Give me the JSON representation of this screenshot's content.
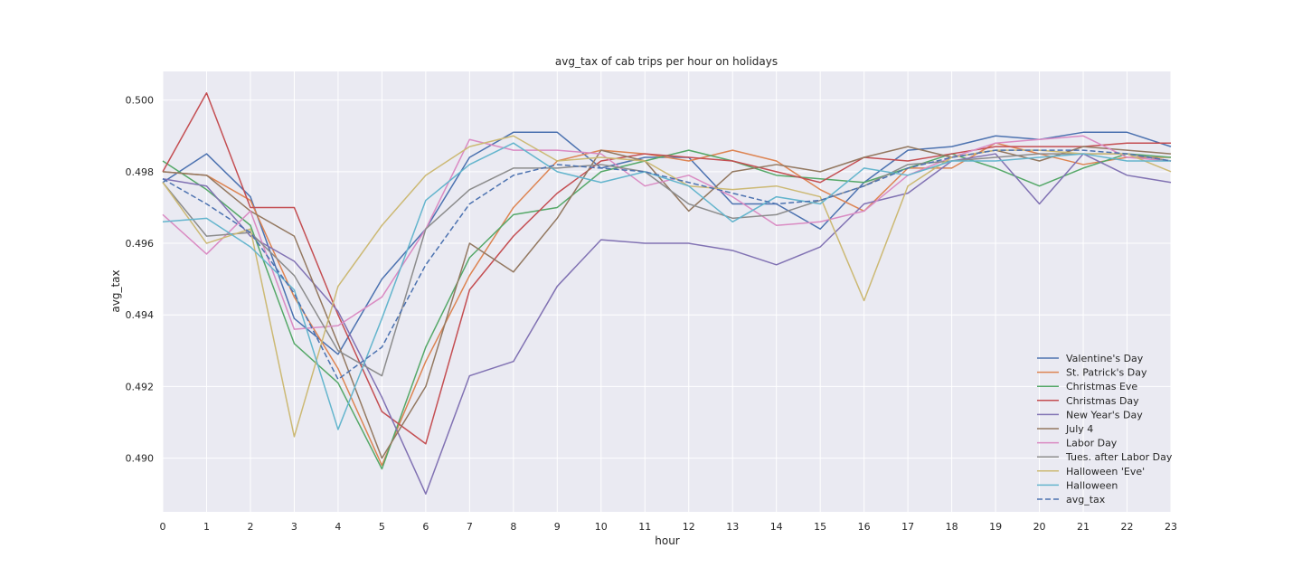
{
  "chart_data": {
    "type": "line",
    "title": "avg_tax of cab trips per hour on holidays",
    "xlabel": "hour",
    "ylabel": "avg_tax",
    "xlim": [
      0,
      23
    ],
    "ylim": [
      0.4885,
      0.5008
    ],
    "x_ticks": [
      0,
      1,
      2,
      3,
      4,
      5,
      6,
      7,
      8,
      9,
      10,
      11,
      12,
      13,
      14,
      15,
      16,
      17,
      18,
      19,
      20,
      21,
      22,
      23
    ],
    "y_ticks": [
      0.49,
      0.492,
      0.494,
      0.496,
      0.498,
      0.5
    ],
    "y_tick_labels": [
      "0.490",
      "0.492",
      "0.494",
      "0.496",
      "0.498",
      "0.500"
    ],
    "grid": true,
    "legend_position": "lower-right",
    "x": [
      0,
      1,
      2,
      3,
      4,
      5,
      6,
      7,
      8,
      9,
      10,
      11,
      12,
      13,
      14,
      15,
      16,
      17,
      18,
      19,
      20,
      21,
      22,
      23
    ],
    "series": [
      {
        "name": "Valentine's Day",
        "color": "#4c72b0",
        "dashed": false,
        "values": [
          0.4977,
          0.4985,
          0.4973,
          0.4939,
          0.4929,
          0.495,
          0.4964,
          0.4984,
          0.4991,
          0.4991,
          0.4981,
          0.4984,
          0.4984,
          0.4971,
          0.4971,
          0.4964,
          0.4977,
          0.4986,
          0.4987,
          0.499,
          0.4989,
          0.4991,
          0.4991,
          0.4987
        ]
      },
      {
        "name": "St. Patrick's Day",
        "color": "#dd8452",
        "dashed": false,
        "values": [
          0.498,
          0.4979,
          0.4972,
          0.4945,
          0.4925,
          0.4898,
          0.4927,
          0.4951,
          0.497,
          0.4983,
          0.4986,
          0.4985,
          0.4983,
          0.4986,
          0.4983,
          0.4975,
          0.4969,
          0.4981,
          0.4981,
          0.4988,
          0.4985,
          0.4982,
          0.4984,
          0.4984
        ]
      },
      {
        "name": "Christmas Eve",
        "color": "#55a868",
        "dashed": false,
        "values": [
          0.4983,
          0.4975,
          0.4965,
          0.4932,
          0.4921,
          0.4897,
          0.4931,
          0.4956,
          0.4968,
          0.497,
          0.498,
          0.4983,
          0.4986,
          0.4983,
          0.4979,
          0.4978,
          0.4977,
          0.4981,
          0.4985,
          0.4981,
          0.4976,
          0.4981,
          0.4985,
          0.4984
        ]
      },
      {
        "name": "Christmas Day",
        "color": "#c44e52",
        "dashed": false,
        "values": [
          0.498,
          0.5002,
          0.497,
          0.497,
          0.494,
          0.4913,
          0.4904,
          0.4947,
          0.4962,
          0.4974,
          0.4983,
          0.4985,
          0.4984,
          0.4983,
          0.498,
          0.4977,
          0.4984,
          0.4983,
          0.4985,
          0.4987,
          0.4987,
          0.4987,
          0.4988,
          0.4988
        ]
      },
      {
        "name": "New Year's Day",
        "color": "#8172b3",
        "dashed": false,
        "values": [
          0.4978,
          0.4976,
          0.4962,
          0.4955,
          0.4941,
          0.4917,
          0.489,
          0.4923,
          0.4927,
          0.4948,
          0.4961,
          0.496,
          0.496,
          0.4958,
          0.4954,
          0.4959,
          0.4971,
          0.4974,
          0.4983,
          0.4985,
          0.4971,
          0.4985,
          0.4979,
          0.4977
        ]
      },
      {
        "name": "July 4",
        "color": "#937860",
        "dashed": false,
        "values": [
          0.498,
          0.4979,
          0.4969,
          0.4962,
          0.4932,
          0.49,
          0.492,
          0.496,
          0.4952,
          0.4967,
          0.4986,
          0.4983,
          0.4969,
          0.498,
          0.4982,
          0.498,
          0.4984,
          0.4987,
          0.4984,
          0.4986,
          0.4983,
          0.4987,
          0.4986,
          0.4985
        ]
      },
      {
        "name": "Labor Day",
        "color": "#da8bc3",
        "dashed": false,
        "values": [
          0.4968,
          0.4957,
          0.4969,
          0.4936,
          0.4937,
          0.4945,
          0.4964,
          0.4989,
          0.4986,
          0.4986,
          0.4985,
          0.4976,
          0.4979,
          0.4973,
          0.4965,
          0.4966,
          0.4969,
          0.4979,
          0.4984,
          0.4988,
          0.4989,
          0.499,
          0.4984,
          0.4983
        ]
      },
      {
        "name": "Tues. after Labor Day",
        "color": "#8c8c8c",
        "dashed": false,
        "values": [
          0.4977,
          0.4962,
          0.4963,
          0.4951,
          0.493,
          0.4923,
          0.4964,
          0.4975,
          0.4981,
          0.4981,
          0.4982,
          0.498,
          0.4971,
          0.4967,
          0.4968,
          0.4972,
          0.4976,
          0.4982,
          0.4983,
          0.4984,
          0.4985,
          0.4985,
          0.4985,
          0.4983
        ]
      },
      {
        "name": "Halloween 'Eve'",
        "color": "#ccb974",
        "dashed": false,
        "values": [
          0.4977,
          0.496,
          0.4964,
          0.4906,
          0.4948,
          0.4965,
          0.4979,
          0.4987,
          0.499,
          0.4983,
          0.4984,
          0.4983,
          0.4976,
          0.4975,
          0.4976,
          0.4973,
          0.4944,
          0.4976,
          0.4984,
          0.4986,
          0.4986,
          0.4985,
          0.4985,
          0.498
        ]
      },
      {
        "name": "Halloween",
        "color": "#64b5cd",
        "dashed": false,
        "values": [
          0.4966,
          0.4967,
          0.4959,
          0.4947,
          0.4908,
          0.4939,
          0.4972,
          0.4982,
          0.4988,
          0.498,
          0.4977,
          0.498,
          0.4976,
          0.4966,
          0.4973,
          0.4971,
          0.4981,
          0.4979,
          0.4983,
          0.4983,
          0.4984,
          0.4985,
          0.4983,
          0.4983
        ]
      },
      {
        "name": "avg_tax",
        "color": "#4c72b0",
        "dashed": true,
        "values": [
          0.4978,
          0.4971,
          0.4963,
          0.4946,
          0.4922,
          0.4931,
          0.4954,
          0.4971,
          0.4979,
          0.4982,
          0.4981,
          0.498,
          0.4977,
          0.4974,
          0.4971,
          0.4972,
          0.4976,
          0.4981,
          0.4984,
          0.4986,
          0.4986,
          0.4986,
          0.4985,
          0.4983
        ]
      }
    ]
  }
}
